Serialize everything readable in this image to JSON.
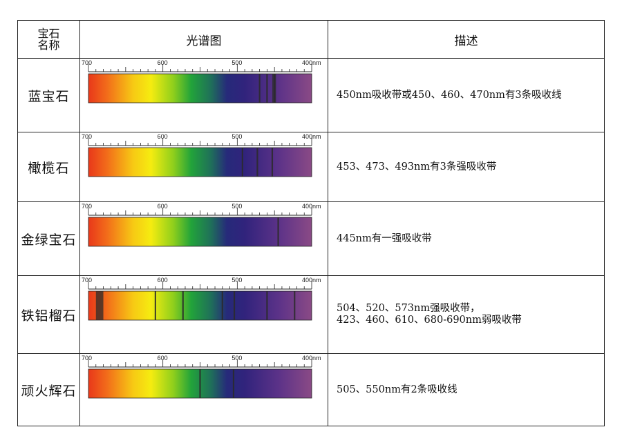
{
  "header": {
    "name_line1": "宝石",
    "name_line2": "名称",
    "spectrum": "光谱图",
    "description": "描述"
  },
  "scale_labels": [
    "700",
    "600",
    "500",
    "400nm"
  ],
  "colors": {
    "border": "#222222",
    "text": "#111111",
    "absorption_line": "#2b2b2b"
  },
  "rows": [
    {
      "name": "蓝宝石",
      "description": [
        "450nm吸收带或450、460、470nm有3条吸收线"
      ],
      "absorption_nm": [
        450,
        460,
        470
      ],
      "absorption_band_nm": [
        [
          448,
          453
        ]
      ]
    },
    {
      "name": "橄榄石",
      "description": [
        "453、473、493nm有3条强吸收带"
      ],
      "absorption_nm": [
        453,
        473,
        493
      ],
      "absorption_band_nm": []
    },
    {
      "name": "金绿宝石",
      "description": [
        "445nm有一强吸收带"
      ],
      "absorption_nm": [
        445
      ],
      "absorption_band_nm": []
    },
    {
      "name": "铁铝榴石",
      "description": [
        "504、520、573nm强吸收带，",
        "423、460、610、680-690nm弱吸收带"
      ],
      "absorption_nm": [
        504,
        520,
        573,
        423,
        460,
        610
      ],
      "absorption_band_nm": [
        [
          680,
          690
        ]
      ]
    },
    {
      "name": "顽火辉石",
      "description": [
        "505、550nm有2条吸收线"
      ],
      "absorption_nm": [
        505,
        550
      ],
      "absorption_band_nm": []
    }
  ]
}
